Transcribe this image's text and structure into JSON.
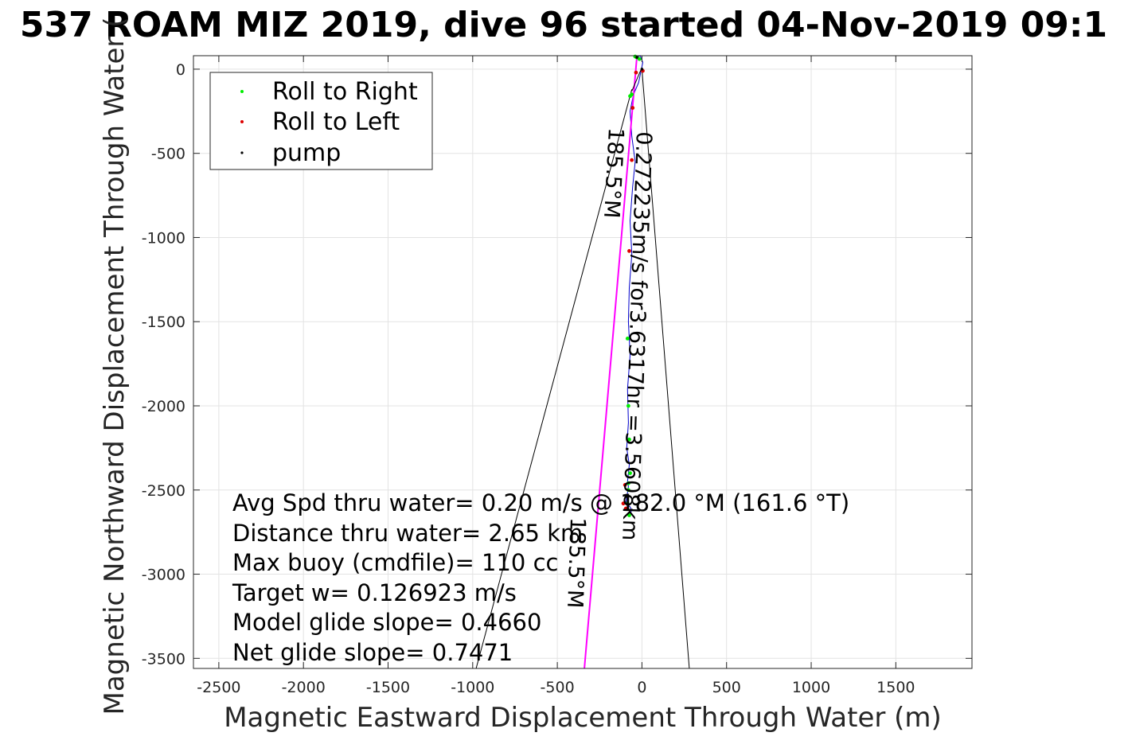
{
  "chart_data": {
    "type": "line",
    "title": "537 ROAM MIZ 2019, dive 96 started 04-Nov-2019 09:1",
    "xlabel": "Magnetic Eastward Displacement Through Water (m)",
    "ylabel": "Magnetic Northward Displacement Through Water (",
    "xlim": [
      -2650,
      1950
    ],
    "ylim": [
      -3560,
      80
    ],
    "xticks": [
      -2500,
      -2000,
      -1500,
      -1000,
      -500,
      0,
      500,
      1000,
      1500
    ],
    "yticks": [
      0,
      -500,
      -1000,
      -1500,
      -2000,
      -2500,
      -3000,
      -3500
    ],
    "xtick_labels": [
      "-2500",
      "-2000",
      "-1500",
      "-1000",
      "-500",
      "0",
      "500",
      "1000",
      "1500"
    ],
    "ytick_labels": [
      "0",
      "-500",
      "-1000",
      "-1500",
      "-2000",
      "-2500",
      "-3000",
      "-3500"
    ],
    "grid": true,
    "legend_position": "top-left",
    "legend": [
      {
        "label": "Roll to Right",
        "color": "#00ee00"
      },
      {
        "label": "Roll to Left",
        "color": "#dd0000"
      },
      {
        "label": "pump",
        "color": "#000000"
      }
    ],
    "series": [
      {
        "style": "track",
        "color": "#0000cc",
        "x": [
          -30,
          -10,
          5,
          -20,
          -50,
          -70,
          -60,
          -40,
          -55,
          -70,
          -60,
          -75,
          -80,
          -70,
          -85,
          -80,
          -90,
          -75,
          -85,
          -80,
          -95,
          -70,
          -60,
          -70
        ],
        "y": [
          70,
          80,
          40,
          -80,
          -150,
          -250,
          -400,
          -550,
          -700,
          -900,
          -1100,
          -1300,
          -1500,
          -1700,
          -1900,
          -2100,
          -2250,
          -2350,
          -2450,
          -2480,
          -2580,
          -2600,
          -2620,
          -2640
        ]
      },
      {
        "style": "heading",
        "color": "#ff00ff",
        "x": [
          -30,
          -340
        ],
        "y": [
          70,
          -3560
        ]
      },
      {
        "style": "heading",
        "color": "#000000",
        "x": [
          -60,
          -980
        ],
        "y": [
          -120,
          -3560
        ]
      },
      {
        "style": "heading",
        "color": "#000000",
        "x": [
          0,
          280
        ],
        "y": [
          0,
          -3560
        ]
      },
      {
        "style": "current",
        "color": "#000000",
        "x": [
          0,
          -60
        ],
        "y": [
          10,
          -130
        ]
      }
    ],
    "markers": {
      "roll_right": {
        "x": [
          -30,
          -40,
          -15,
          -60,
          -70,
          -85,
          -80,
          -75,
          -70,
          -80,
          -80,
          -85,
          -75
        ],
        "y": [
          70,
          75,
          60,
          -150,
          -160,
          -1600,
          -2000,
          -2200,
          -2400,
          -2460,
          -2500,
          -2580,
          -2650
        ]
      },
      "roll_left": {
        "x": [
          5,
          -35,
          -55,
          -60,
          -75,
          -100,
          -110,
          -95
        ],
        "y": [
          -10,
          -20,
          -230,
          -540,
          -1080,
          -2470,
          -2580,
          -2610
        ]
      },
      "pump": {
        "x": [
          -30,
          0
        ],
        "y": [
          70,
          0
        ]
      }
    },
    "annotations": {
      "heading_label": "185.5°M",
      "current_label": "0.272235m/s for3.6317hr =3.5608km",
      "heading_label_2": "185.5°M",
      "stats": [
        "Avg Spd thru water=  0.20 m/s @ 182.0 °M (161.6 °T)",
        "Distance thru water=  2.65 km",
        "Max buoy (cmdfile)= 110 cc",
        "Target w= 0.126923 m/s",
        "Model glide slope= 0.4660",
        "Net glide slope= 0.7471"
      ]
    }
  }
}
